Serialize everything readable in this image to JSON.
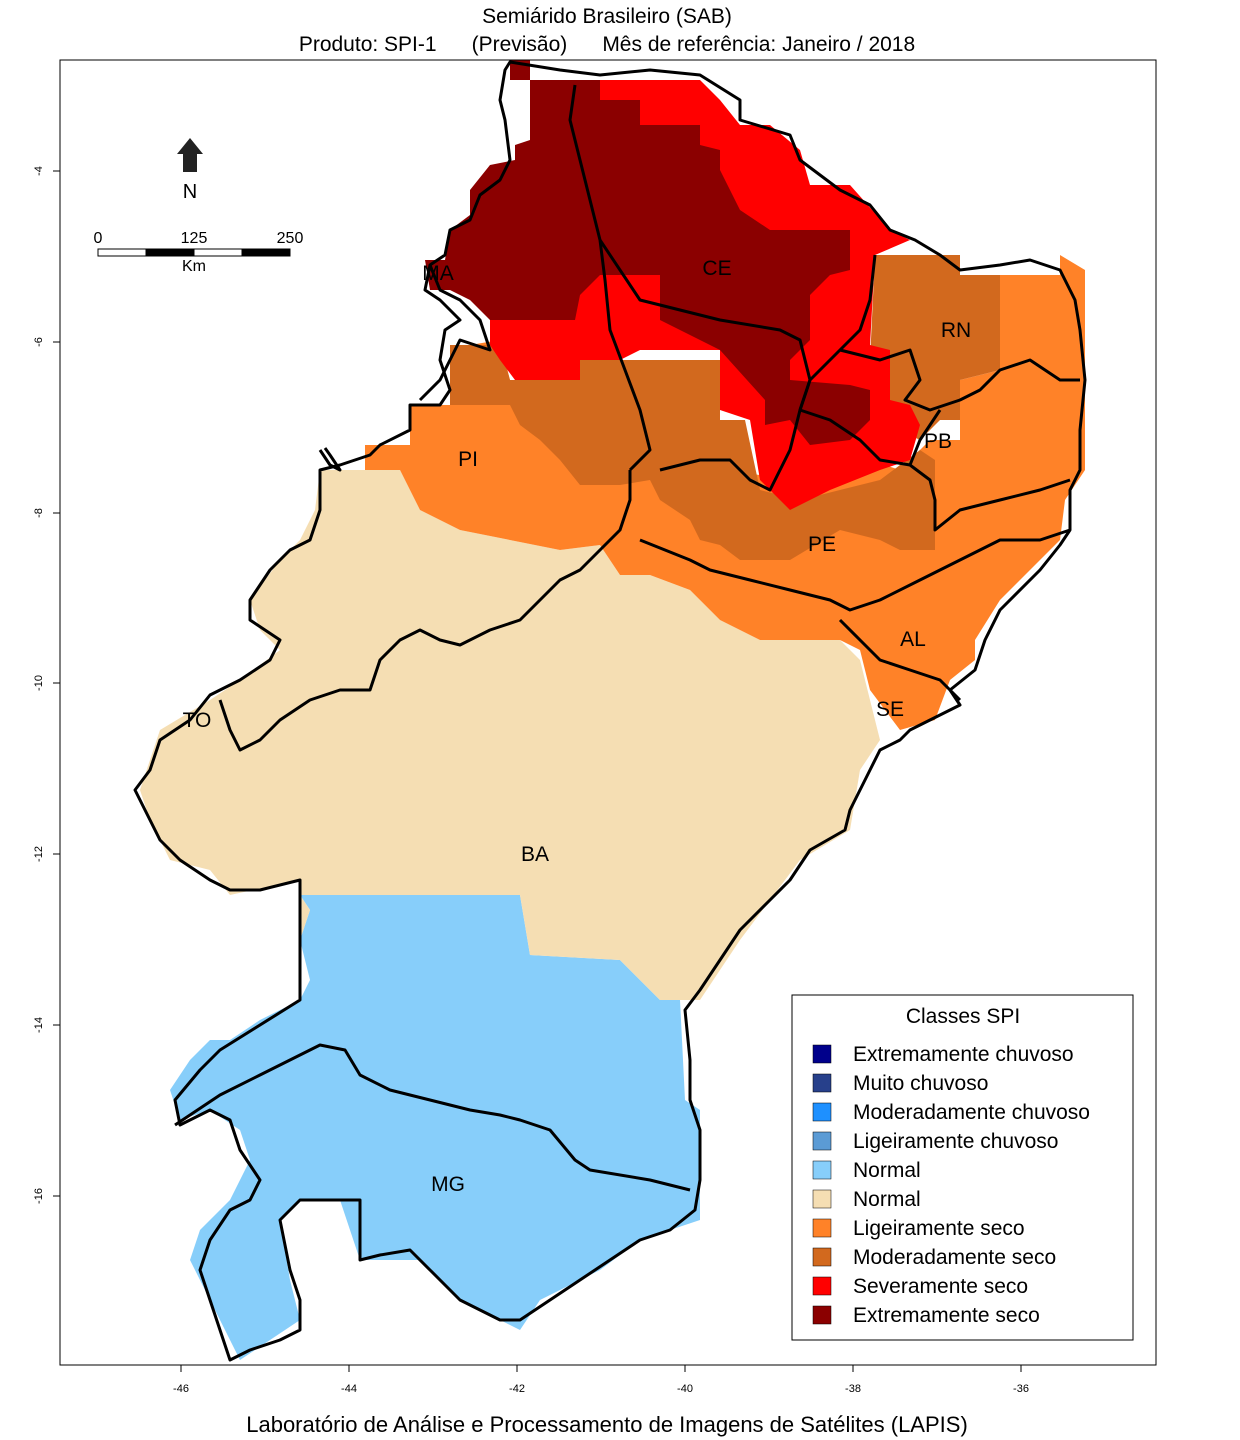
{
  "title": {
    "line1": "Semiárido Brasileiro (SAB)",
    "product": "Produto: SPI-1",
    "mode": "(Previsão)",
    "reference": "Mês de referência:  Janeiro / 2018"
  },
  "footer": "Laboratório de Análise e Processamento de Imagens de Satélites (LAPIS)",
  "map": {
    "x_ticks": [
      "-46",
      "-44",
      "-42",
      "-40",
      "-38",
      "-36"
    ],
    "y_ticks": [
      "-4",
      "-6",
      "-8",
      "-10",
      "-12",
      "-14",
      "-16"
    ],
    "north": "N",
    "scale": {
      "labels": [
        "0",
        "125",
        "250"
      ],
      "unit": "Km"
    },
    "states": [
      "MA",
      "CE",
      "RN",
      "PI",
      "PB",
      "PE",
      "AL",
      "SE",
      "TO",
      "BA",
      "MG"
    ],
    "colors": {
      "normal_wet": "#87cefa",
      "normal_dry": "#f5deb3",
      "slightly_dry": "#ff8228",
      "moderately_dry": "#d2691e",
      "severely_dry": "#ff0000",
      "extremely_dry": "#8b0000"
    }
  },
  "legend": {
    "title": "Classes SPI",
    "items": [
      {
        "label": "Extremamente chuvoso",
        "color": "#00008b"
      },
      {
        "label": "Muito chuvoso",
        "color": "#27408b"
      },
      {
        "label": "Moderadamente chuvoso",
        "color": "#1e90ff"
      },
      {
        "label": "Ligeiramente chuvoso",
        "color": "#5b9bd5"
      },
      {
        "label": "Normal",
        "color": "#87cefa"
      },
      {
        "label": "Normal",
        "color": "#f5deb3"
      },
      {
        "label": "Ligeiramente seco",
        "color": "#ff8228"
      },
      {
        "label": "Moderadamente seco",
        "color": "#d2691e"
      },
      {
        "label": "Severamente seco",
        "color": "#ff0000"
      },
      {
        "label": "Extremamente seco",
        "color": "#8b0000"
      }
    ]
  }
}
